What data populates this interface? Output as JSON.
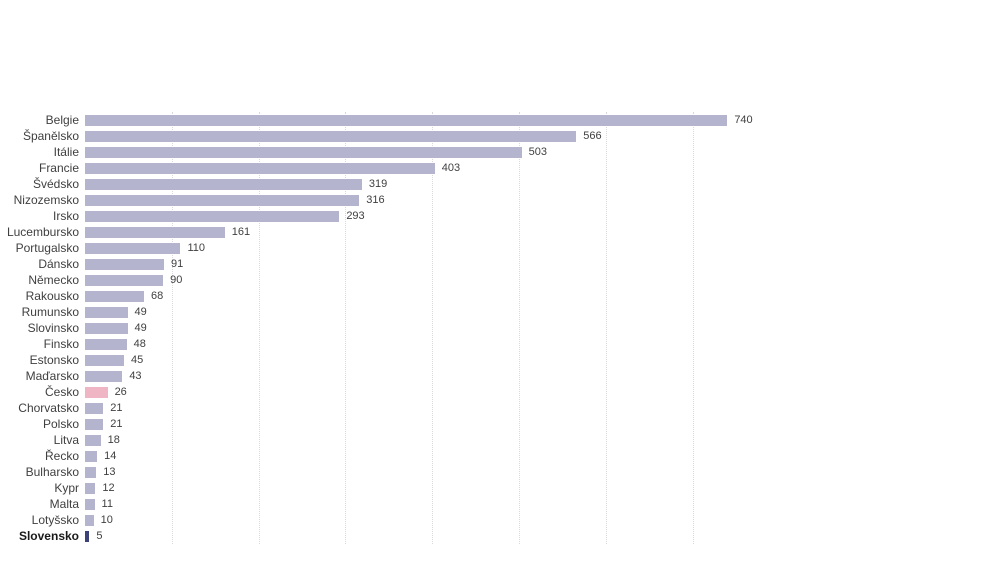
{
  "page": {
    "background": "#ffffff"
  },
  "chart_data": {
    "type": "bar",
    "orientation": "horizontal",
    "title": "",
    "categories": [
      "Belgie",
      "Španělsko",
      "Itálie",
      "Francie",
      "Švédsko",
      "Nizozemsko",
      "Irsko",
      "Lucembursko",
      "Portugalsko",
      "Dánsko",
      "Německo",
      "Rakousko",
      "Rumunsko",
      "Slovinsko",
      "Finsko",
      "Estonsko",
      "Maďarsko",
      "Česko",
      "Chorvatsko",
      "Polsko",
      "Litva",
      "Řecko",
      "Bulharsko",
      "Kypr",
      "Malta",
      "Lotyšsko",
      "Slovensko"
    ],
    "values": [
      740,
      566,
      503,
      403,
      319,
      316,
      293,
      161,
      110,
      91,
      90,
      68,
      49,
      49,
      48,
      45,
      43,
      26,
      21,
      21,
      18,
      14,
      13,
      12,
      11,
      10,
      5
    ],
    "value_labels_shown": true,
    "xlabel": "",
    "ylabel": "",
    "xlim": [
      0,
      740
    ],
    "grid": {
      "interval": 100,
      "max": 700,
      "style": "dotted",
      "color": "#d9d9d9"
    },
    "colors": {
      "bar_default": "#b4b4ce",
      "bar_highlight_cesko": "#f0b5c4",
      "bar_highlight_slovensko": "#3c4278",
      "category_text": "#3f3f3f",
      "value_text": "#404040"
    },
    "highlights": {
      "Česko": {
        "color": "#f0b5c4",
        "bold_label": false
      },
      "Slovensko": {
        "color": "#3c4278",
        "bold_label": true
      }
    },
    "legend": "none"
  }
}
